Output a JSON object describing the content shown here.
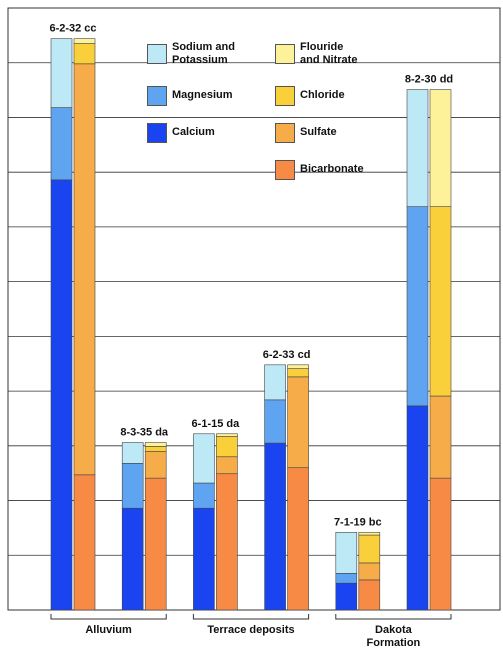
{
  "chart_data": {
    "type": "paired-stacked-bar",
    "ylim": [
      0,
      11
    ],
    "yticks": [
      0,
      1,
      2,
      3,
      4,
      5,
      6,
      7,
      8,
      9,
      10
    ],
    "grid": true,
    "groups": [
      {
        "name": "Alluvium",
        "categories": [
          "6-2-32 cc",
          "8-3-35 da"
        ]
      },
      {
        "name": "Terrace deposits",
        "categories": [
          "6-1-15 da",
          "6-2-33 cd"
        ]
      },
      {
        "name": "Dakota\nFormation",
        "categories": [
          "7-1-19 bc",
          "8-2-30 dd"
        ]
      }
    ],
    "stacks": [
      {
        "series": [
          {
            "name": "Calcium",
            "color": "#1a44f0",
            "values": [
              7.86,
              1.86,
              1.86,
              3.05,
              0.49,
              3.73
            ]
          },
          {
            "name": "Magnesium",
            "color": "#5ea4f0",
            "values": [
              1.32,
              0.82,
              0.46,
              0.79,
              0.18,
              3.64
            ]
          },
          {
            "name": "Sodium and\nPotassium",
            "color": "#bde9f7",
            "values": [
              1.26,
              0.38,
              0.9,
              0.64,
              0.75,
              2.14
            ]
          }
        ]
      },
      {
        "series": [
          {
            "name": "Bicarbonate",
            "color": "#f78a44",
            "values": [
              2.47,
              2.41,
              2.49,
              2.6,
              0.55,
              2.41
            ]
          },
          {
            "name": "Sulfate",
            "color": "#f7ac4a",
            "values": [
              7.51,
              0.49,
              0.31,
              1.66,
              0.31,
              1.5
            ]
          },
          {
            "name": "Chloride",
            "color": "#f9cf3a",
            "values": [
              0.37,
              0.09,
              0.37,
              0.15,
              0.51,
              3.46
            ]
          },
          {
            "name": "Flouride\nand Nitrate",
            "color": "#fdf19a",
            "values": [
              0.09,
              0.07,
              0.05,
              0.07,
              0.05,
              2.14
            ]
          }
        ]
      }
    ]
  }
}
